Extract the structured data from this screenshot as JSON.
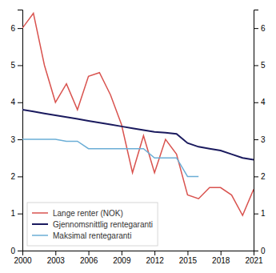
{
  "chart_data": {
    "type": "line",
    "x": [
      2000,
      2001,
      2002,
      2003,
      2004,
      2005,
      2006,
      2007,
      2008,
      2009,
      2010,
      2011,
      2012,
      2013,
      2014,
      2015,
      2016,
      2017,
      2018,
      2019,
      2020,
      2021
    ],
    "series": [
      {
        "name": "Lange renter (NOK)",
        "color": "#d9534f",
        "values": [
          6.0,
          6.4,
          5.0,
          4.0,
          4.5,
          3.8,
          4.7,
          4.8,
          4.2,
          3.4,
          2.1,
          3.1,
          2.1,
          3.0,
          2.6,
          1.5,
          1.4,
          1.7,
          1.7,
          1.5,
          0.95,
          1.65
        ]
      },
      {
        "name": "Gjennomsnittlig rentegaranti",
        "color": "#1a1a5e",
        "values": [
          3.8,
          3.75,
          3.7,
          3.65,
          3.6,
          3.55,
          3.5,
          3.45,
          3.4,
          3.35,
          3.3,
          3.25,
          3.2,
          3.18,
          3.15,
          2.9,
          2.8,
          2.75,
          2.7,
          2.6,
          2.5,
          2.45
        ]
      },
      {
        "name": "Maksimal rentegaranti",
        "color": "#6baed6",
        "values": [
          3.0,
          3.0,
          3.0,
          3.0,
          2.95,
          2.95,
          2.75,
          2.75,
          2.75,
          2.75,
          2.75,
          2.75,
          2.5,
          2.5,
          2.5,
          2.0,
          2.0,
          null,
          null,
          null,
          null,
          null
        ]
      }
    ],
    "xlim": [
      2000,
      2021
    ],
    "xticks": [
      2000,
      2003,
      2006,
      2009,
      2012,
      2015,
      2018,
      2021
    ],
    "ylim": [
      0,
      6.5
    ],
    "yticks": [
      0,
      1,
      2,
      3,
      4,
      5,
      6
    ],
    "y2lim": [
      0,
      6.5
    ],
    "y2ticks": [
      0,
      1,
      2,
      3,
      4,
      5,
      6
    ],
    "grid": false,
    "legend": "lower left"
  }
}
